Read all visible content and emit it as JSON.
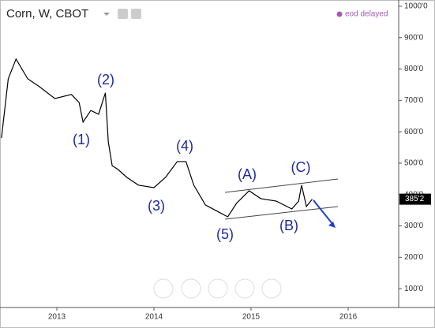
{
  "chart_data": {
    "type": "line",
    "title": "Corn, W, CBOT",
    "status": "eod delayed",
    "x": [
      2012.43,
      2012.5,
      2012.58,
      2012.7,
      2012.82,
      2012.98,
      2013.15,
      2013.23,
      2013.27,
      2013.35,
      2013.43,
      2013.5,
      2013.53,
      2013.57,
      2013.63,
      2013.72,
      2013.84,
      2014.0,
      2014.12,
      2014.24,
      2014.33,
      2014.41,
      2014.53,
      2014.65,
      2014.76,
      2014.85,
      2014.98,
      2015.1,
      2015.26,
      2015.42,
      2015.49,
      2015.52,
      2015.57,
      2015.63
    ],
    "series": [
      {
        "name": "Corn",
        "color": "#000000",
        "values": [
          580,
          769,
          832,
          769,
          744,
          706,
          719,
          693,
          631,
          668,
          656,
          724,
          568,
          492,
          480,
          455,
          430,
          422,
          455,
          505,
          505,
          430,
          367,
          347,
          329,
          372,
          412,
          387,
          379,
          354,
          379,
          430,
          362,
          385.25
        ]
      }
    ],
    "last_value": 385.25,
    "last_value_label": "385'2",
    "annotations": [
      "(1)",
      "(2)",
      "(3)",
      "(4)",
      "(5)",
      "(A)",
      "(B)",
      "(C)"
    ],
    "xlim": [
      2012.415,
      2016.52
    ],
    "xticks": [
      2013,
      2014,
      2015,
      2016
    ],
    "ylim": [
      40,
      1020
    ],
    "yticks": [
      {
        "value": 100,
        "label": "100'0"
      },
      {
        "value": 200,
        "label": "200'0"
      },
      {
        "value": 300,
        "label": "300'0"
      },
      {
        "value": 400,
        "label": "400'0"
      },
      {
        "value": 500,
        "label": "500'0"
      },
      {
        "value": 600,
        "label": "600'0"
      },
      {
        "value": 700,
        "label": "700'0"
      },
      {
        "value": 800,
        "label": "800'0"
      },
      {
        "value": 900,
        "label": "900'0"
      },
      {
        "value": 1000,
        "label": "1000'0"
      }
    ],
    "grid": false
  }
}
